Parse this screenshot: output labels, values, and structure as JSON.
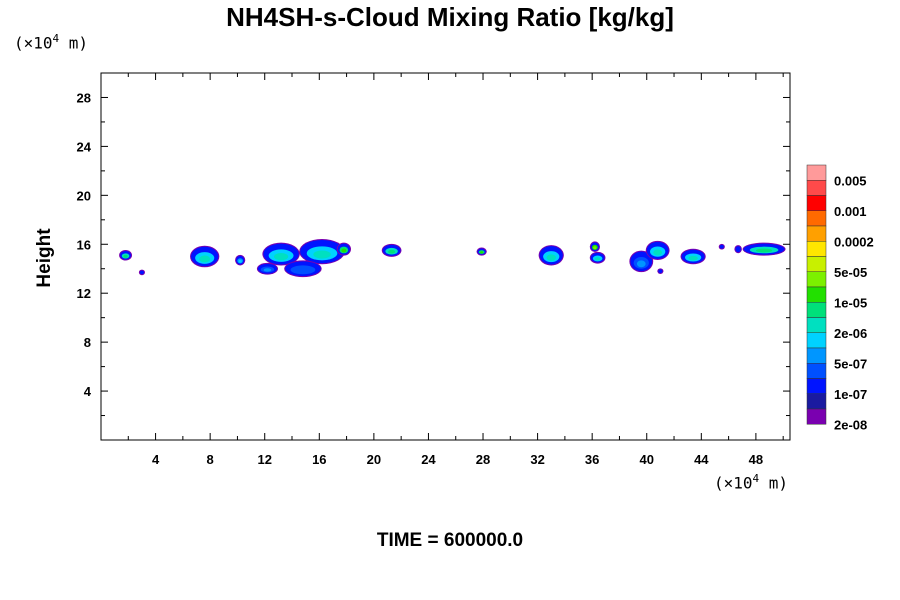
{
  "chart_data": {
    "type": "heatmap",
    "title": "NH4SH-s-Cloud Mixing Ratio [kg/kg]",
    "ylabel": "Height",
    "x_unit": {
      "prefix": "(×10",
      "exp": "4",
      "suffix": " m)"
    },
    "y_unit": {
      "prefix": "(×10",
      "exp": "4",
      "suffix": " m)"
    },
    "xlim": [
      0,
      50.5
    ],
    "ylim": [
      0,
      30
    ],
    "x_ticks": [
      "4",
      "8",
      "12",
      "16",
      "20",
      "24",
      "28",
      "32",
      "36",
      "40",
      "44",
      "48"
    ],
    "x_tick_values": [
      4,
      8,
      12,
      16,
      20,
      24,
      28,
      32,
      36,
      40,
      44,
      48
    ],
    "y_ticks": [
      "4",
      "8",
      "12",
      "16",
      "20",
      "24",
      "28"
    ],
    "y_tick_values": [
      4,
      8,
      12,
      16,
      20,
      24,
      28
    ],
    "colorbar": {
      "labels": [
        "0.005",
        "0.001",
        "0.0002",
        "5e-05",
        "1e-05",
        "2e-06",
        "5e-07",
        "1e-07",
        "2e-08"
      ],
      "colors_top_to_bottom": [
        "#ff9a9a",
        "#ff4a4a",
        "#ff0000",
        "#ff6a00",
        "#ffa000",
        "#ffe600",
        "#c8f000",
        "#7cf000",
        "#22e000",
        "#00e07a",
        "#00e0c0",
        "#00d2ff",
        "#0096ff",
        "#0050ff",
        "#0014ff",
        "#1a1aa0",
        "#7a00b0"
      ]
    },
    "clouds": [
      {
        "x": 1.8,
        "y": 15.1,
        "w": 0.8,
        "h": 0.7,
        "level": 7
      },
      {
        "x": 3.0,
        "y": 13.7,
        "w": 0.3,
        "h": 0.3,
        "level": 4
      },
      {
        "x": 7.6,
        "y": 15.0,
        "w": 2.0,
        "h": 1.6,
        "level": 6
      },
      {
        "x": 10.2,
        "y": 14.7,
        "w": 0.6,
        "h": 0.7,
        "level": 5
      },
      {
        "x": 12.2,
        "y": 14.0,
        "w": 1.4,
        "h": 0.8,
        "level": 4
      },
      {
        "x": 13.2,
        "y": 15.2,
        "w": 2.6,
        "h": 1.7,
        "level": 6
      },
      {
        "x": 16.2,
        "y": 15.4,
        "w": 3.2,
        "h": 1.9,
        "level": 6
      },
      {
        "x": 14.8,
        "y": 14.0,
        "w": 2.6,
        "h": 1.2,
        "level": 3
      },
      {
        "x": 17.8,
        "y": 15.6,
        "w": 0.9,
        "h": 0.9,
        "level": 8
      },
      {
        "x": 21.3,
        "y": 15.5,
        "w": 1.3,
        "h": 0.9,
        "level": 7
      },
      {
        "x": 27.9,
        "y": 15.4,
        "w": 0.6,
        "h": 0.5,
        "level": 8
      },
      {
        "x": 33.0,
        "y": 15.1,
        "w": 1.7,
        "h": 1.5,
        "level": 6
      },
      {
        "x": 36.2,
        "y": 15.8,
        "w": 0.6,
        "h": 0.7,
        "level": 9
      },
      {
        "x": 36.4,
        "y": 14.9,
        "w": 1.0,
        "h": 0.8,
        "level": 6
      },
      {
        "x": 39.6,
        "y": 14.6,
        "w": 1.6,
        "h": 1.6,
        "level": 4
      },
      {
        "x": 40.8,
        "y": 15.5,
        "w": 1.6,
        "h": 1.4,
        "level": 6
      },
      {
        "x": 41.0,
        "y": 13.8,
        "w": 0.3,
        "h": 0.3,
        "level": 3
      },
      {
        "x": 43.4,
        "y": 15.0,
        "w": 1.7,
        "h": 1.1,
        "level": 6
      },
      {
        "x": 45.5,
        "y": 15.8,
        "w": 0.3,
        "h": 0.3,
        "level": 8
      },
      {
        "x": 46.7,
        "y": 15.6,
        "w": 0.4,
        "h": 0.5,
        "level": 8
      },
      {
        "x": 48.6,
        "y": 15.6,
        "w": 3.0,
        "h": 0.9,
        "level": 7
      }
    ]
  },
  "footer": {
    "time_label": "TIME = 600000.0"
  }
}
